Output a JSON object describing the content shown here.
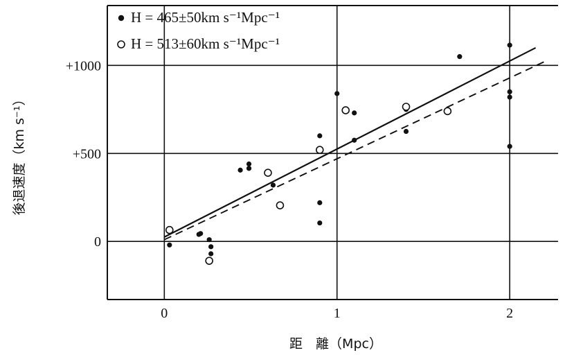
{
  "chart_data": {
    "type": "scatter",
    "xlabel": "距　離（Mpc）",
    "ylabel": "後退速度（km s⁻¹）",
    "xlim": [
      -0.33,
      2.28
    ],
    "ylim": [
      -330,
      1340
    ],
    "x_ticks": [
      {
        "value": 0,
        "label": "0"
      },
      {
        "value": 1,
        "label": "1"
      },
      {
        "value": 2,
        "label": "2"
      }
    ],
    "y_ticks": [
      {
        "value": 0,
        "label": "0"
      },
      {
        "value": 500,
        "label": "+500"
      },
      {
        "value": 1000,
        "label": "+1000"
      }
    ],
    "grid": true,
    "legend_position": "top-left",
    "series": [
      {
        "name": "H = 465±50km s⁻¹Mpc⁻¹",
        "marker": "filled-circle",
        "line_style": "solid",
        "fit": [
          [
            0.0,
            25
          ],
          [
            2.15,
            1100
          ]
        ],
        "points": [
          [
            0.03,
            -20
          ],
          [
            0.2,
            40
          ],
          [
            0.21,
            45
          ],
          [
            0.26,
            10
          ],
          [
            0.27,
            -30
          ],
          [
            0.27,
            -70
          ],
          [
            0.44,
            405
          ],
          [
            0.49,
            415
          ],
          [
            0.49,
            440
          ],
          [
            0.63,
            320
          ],
          [
            0.9,
            600
          ],
          [
            0.9,
            220
          ],
          [
            0.9,
            105
          ],
          [
            1.0,
            840
          ],
          [
            1.1,
            730
          ],
          [
            1.1,
            575
          ],
          [
            1.4,
            750
          ],
          [
            1.4,
            625
          ],
          [
            1.71,
            1050
          ],
          [
            2.0,
            1115
          ],
          [
            2.0,
            850
          ],
          [
            2.0,
            820
          ],
          [
            2.0,
            540
          ]
        ]
      },
      {
        "name": "H = 513±60km s⁻¹Mpc⁻¹",
        "marker": "open-circle",
        "line_style": "dashed",
        "fit": [
          [
            0.0,
            10
          ],
          [
            2.22,
            1030
          ]
        ],
        "points": [
          [
            0.03,
            65
          ],
          [
            0.26,
            -110
          ],
          [
            0.6,
            390
          ],
          [
            0.67,
            205
          ],
          [
            0.9,
            520
          ],
          [
            1.05,
            745
          ],
          [
            1.4,
            765
          ],
          [
            1.64,
            740
          ]
        ]
      }
    ]
  }
}
